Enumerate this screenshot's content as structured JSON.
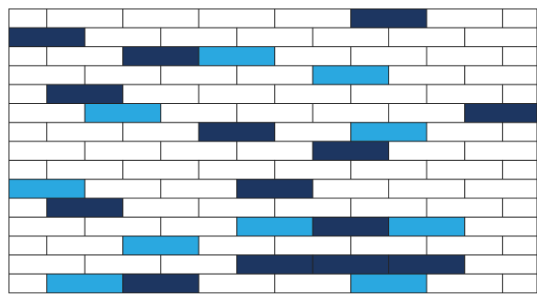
{
  "colors": {
    "empty": "#ffffff",
    "dark": "#1d3661",
    "light": "#2aa8e0",
    "mortar": "#222222"
  },
  "wall": {
    "description_note": "",
    "rows": [
      {
        "offset": "half",
        "bricks": [
          "empty",
          "empty",
          "empty",
          "empty",
          "empty",
          "dark",
          "empty",
          "empty"
        ]
      },
      {
        "offset": "none",
        "bricks": [
          "dark",
          "empty",
          "empty",
          "empty",
          "empty",
          "empty",
          "empty",
          "empty"
        ]
      },
      {
        "offset": "half",
        "bricks": [
          "empty",
          "empty",
          "dark",
          "light",
          "empty",
          "empty",
          "empty",
          "empty"
        ]
      },
      {
        "offset": "none",
        "bricks": [
          "empty",
          "empty",
          "empty",
          "empty",
          "light",
          "empty",
          "empty",
          "empty"
        ]
      },
      {
        "offset": "half",
        "bricks": [
          "empty",
          "dark",
          "empty",
          "empty",
          "empty",
          "empty",
          "empty",
          "empty"
        ]
      },
      {
        "offset": "none",
        "bricks": [
          "empty",
          "light",
          "empty",
          "empty",
          "empty",
          "empty",
          "dark",
          "empty"
        ]
      },
      {
        "offset": "half",
        "bricks": [
          "empty",
          "empty",
          "empty",
          "dark",
          "empty",
          "light",
          "empty",
          "empty"
        ]
      },
      {
        "offset": "none",
        "bricks": [
          "empty",
          "empty",
          "empty",
          "empty",
          "dark",
          "empty",
          "empty",
          "empty"
        ]
      },
      {
        "offset": "half",
        "bricks": [
          "empty",
          "empty",
          "empty",
          "empty",
          "empty",
          "empty",
          "empty",
          "empty"
        ]
      },
      {
        "offset": "none",
        "bricks": [
          "light",
          "empty",
          "empty",
          "dark",
          "empty",
          "empty",
          "empty",
          "empty"
        ]
      },
      {
        "offset": "half",
        "bricks": [
          "empty",
          "dark",
          "empty",
          "empty",
          "empty",
          "empty",
          "empty",
          "empty"
        ]
      },
      {
        "offset": "none",
        "bricks": [
          "empty",
          "empty",
          "empty",
          "light",
          "dark",
          "light",
          "empty",
          "empty"
        ]
      },
      {
        "offset": "half",
        "bricks": [
          "empty",
          "empty",
          "light",
          "empty",
          "empty",
          "empty",
          "empty",
          "empty"
        ]
      },
      {
        "offset": "none",
        "bricks": [
          "empty",
          "empty",
          "empty",
          "dark",
          "dark",
          "dark",
          "empty",
          "empty"
        ]
      },
      {
        "offset": "half",
        "bricks": [
          "empty",
          "light",
          "dark",
          "empty",
          "empty",
          "light",
          "empty",
          "empty"
        ]
      }
    ]
  }
}
